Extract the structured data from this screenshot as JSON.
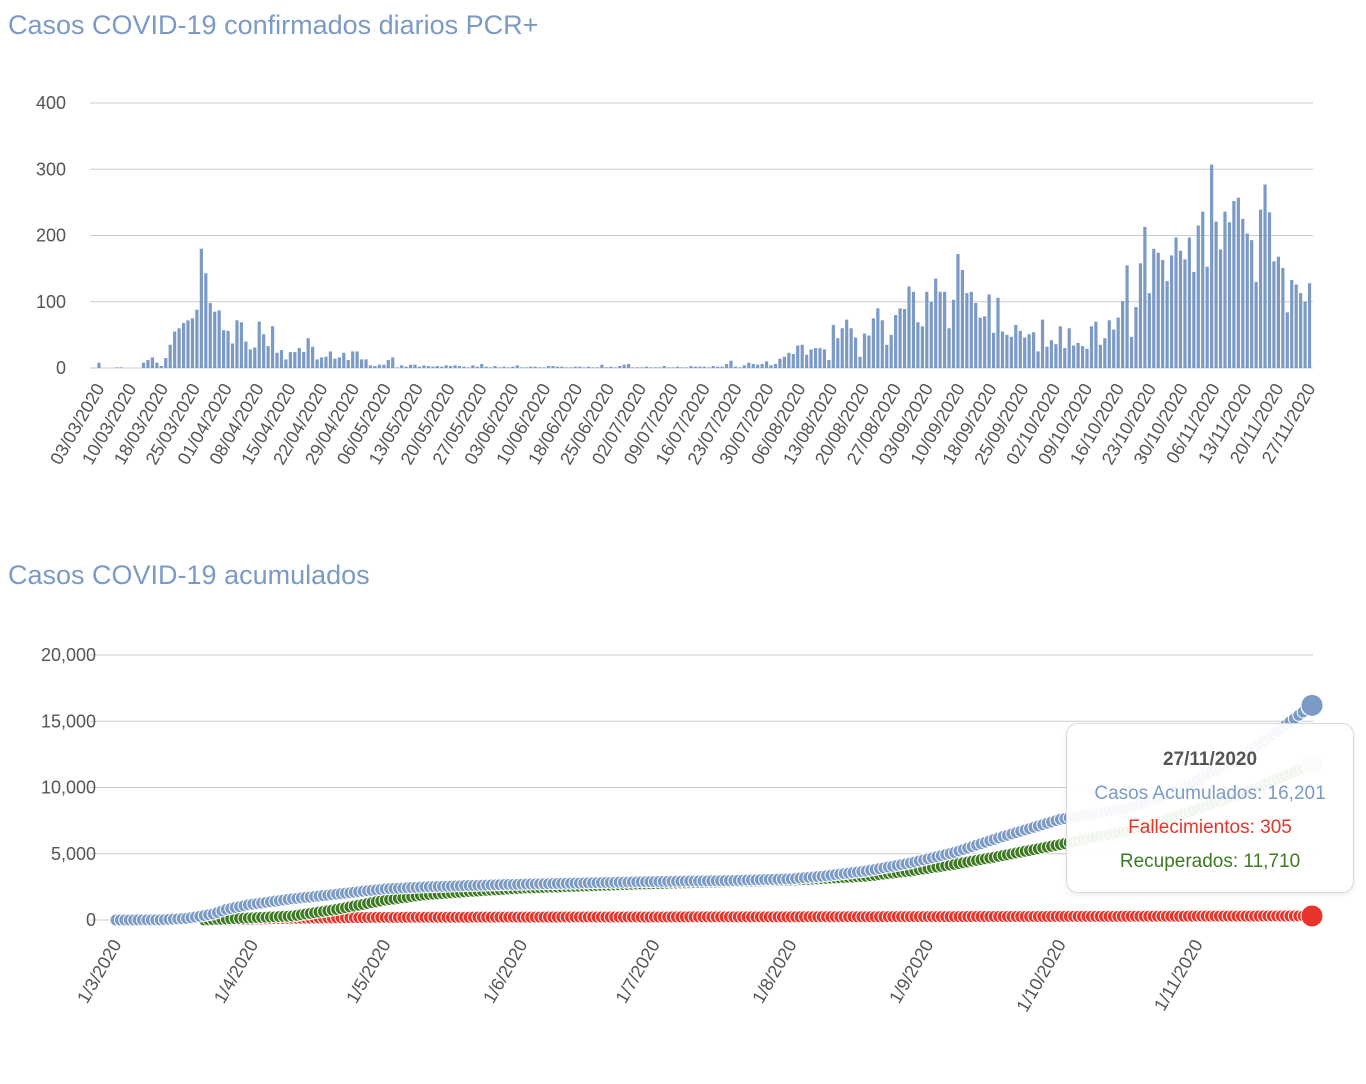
{
  "charts": [
    {
      "title": "Casos COVID-19 confirmados diarios PCR+",
      "chart_data": {
        "type": "bar",
        "yticks": [
          "0",
          "100",
          "200",
          "300",
          "400"
        ],
        "ylim": [
          0,
          400
        ],
        "grid": true,
        "x_start": "03/03/2020",
        "x_end": "27/11/2020",
        "xtick_labels": [
          "03/03/2020",
          "10/03/2020",
          "18/03/2020",
          "25/03/2020",
          "01/04/2020",
          "08/04/2020",
          "15/04/2020",
          "22/04/2020",
          "29/04/2020",
          "06/05/2020",
          "13/05/2020",
          "20/05/2020",
          "27/05/2020",
          "03/06/2020",
          "10/06/2020",
          "18/06/2020",
          "25/06/2020",
          "02/07/2020",
          "09/07/2020",
          "16/07/2020",
          "23/07/2020",
          "30/07/2020",
          "06/08/2020",
          "13/08/2020",
          "20/08/2020",
          "27/08/2020",
          "03/09/2020",
          "10/09/2020",
          "18/09/2020",
          "25/09/2020",
          "02/10/2020",
          "09/10/2020",
          "16/10/2020",
          "23/10/2020",
          "30/10/2020",
          "06/11/2020",
          "13/11/2020",
          "20/11/2020",
          "27/11/2020"
        ],
        "color": "#7b9ac6",
        "values": [
          8,
          0,
          0,
          0,
          1,
          1,
          0,
          0,
          0,
          0,
          8,
          12,
          16,
          8,
          3,
          15,
          35,
          55,
          60,
          68,
          72,
          75,
          88,
          180,
          143,
          98,
          85,
          87,
          57,
          56,
          37,
          72,
          69,
          40,
          28,
          31,
          70,
          51,
          33,
          63,
          23,
          27,
          13,
          24,
          24,
          30,
          24,
          45,
          32,
          13,
          16,
          17,
          25,
          14,
          16,
          23,
          12,
          25,
          25,
          13,
          13,
          4,
          3,
          5,
          5,
          12,
          16,
          1,
          4,
          2,
          5,
          5,
          2,
          4,
          3,
          2,
          3,
          2,
          4,
          3,
          4,
          3,
          2,
          1,
          4,
          2,
          6,
          2,
          1,
          3,
          1,
          2,
          1,
          2,
          4,
          1,
          1,
          2,
          2,
          1,
          1,
          3,
          3,
          2,
          2,
          1,
          1,
          2,
          2,
          1,
          2,
          1,
          1,
          5,
          1,
          2,
          1,
          3,
          5,
          6,
          1,
          1,
          1,
          2,
          1,
          1,
          1,
          3,
          1,
          1,
          2,
          1,
          1,
          3,
          2,
          2,
          2,
          1,
          3,
          2,
          2,
          6,
          11,
          2,
          1,
          4,
          8,
          6,
          5,
          6,
          10,
          4,
          6,
          14,
          17,
          23,
          21,
          34,
          35,
          20,
          28,
          30,
          30,
          28,
          12,
          65,
          45,
          60,
          73,
          60,
          46,
          17,
          52,
          49,
          75,
          90,
          72,
          35,
          50,
          80,
          90,
          89,
          123,
          115,
          69,
          63,
          115,
          100,
          135,
          115,
          115,
          60,
          103,
          172,
          148,
          113,
          115,
          98,
          76,
          78,
          111,
          53,
          106,
          55,
          50,
          47,
          65,
          56,
          46,
          51,
          54,
          25,
          73,
          32,
          42,
          36,
          63,
          30,
          60,
          34,
          38,
          33,
          29,
          63,
          70,
          35,
          45,
          72,
          58,
          76,
          101,
          155,
          47,
          92,
          158,
          213,
          113,
          180,
          174,
          163,
          131,
          170,
          197,
          177,
          164,
          197,
          145,
          215,
          236,
          153,
          307,
          221,
          179,
          236,
          220,
          252,
          257,
          225,
          203,
          193,
          130,
          239,
          277,
          235,
          161,
          168,
          151,
          84,
          133,
          126,
          113,
          100,
          128
        ]
      }
    },
    {
      "title": "Casos COVID-19 acumulados",
      "chart_data": {
        "type": "line",
        "yticks": [
          "0",
          "5,000",
          "10,000",
          "15,000",
          "20,000"
        ],
        "ylim": [
          0,
          20000
        ],
        "grid": true,
        "xtick_labels": [
          "1/3/2020",
          "1/4/2020",
          "1/5/2020",
          "1/6/2020",
          "1/7/2020",
          "1/8/2020",
          "1/9/2020",
          "1/10/2020",
          "1/11/2020"
        ],
        "x_start": "01/03/2020",
        "x_end": "27/11/2020",
        "series": [
          {
            "name": "Casos Acumulados",
            "color": "#7b9ac6",
            "keypoints": [
              [
                0,
                0
              ],
              [
                10,
                10
              ],
              [
                16,
                120
              ],
              [
                22,
                450
              ],
              [
                25,
                800
              ],
              [
                30,
                1150
              ],
              [
                40,
                1600
              ],
              [
                50,
                1950
              ],
              [
                61,
                2350
              ],
              [
                70,
                2500
              ],
              [
                80,
                2600
              ],
              [
                92,
                2700
              ],
              [
                110,
                2820
              ],
              [
                122,
                2900
              ],
              [
                140,
                2980
              ],
              [
                153,
                3100
              ],
              [
                160,
                3300
              ],
              [
                170,
                3700
              ],
              [
                180,
                4300
              ],
              [
                190,
                5100
              ],
              [
                200,
                6200
              ],
              [
                214,
                7600
              ],
              [
                230,
                8500
              ],
              [
                240,
                9700
              ],
              [
                255,
                12300
              ],
              [
                265,
                14700
              ],
              [
                271,
                16201
              ]
            ]
          },
          {
            "name": "Recuperados",
            "color": "#3d7a22",
            "last_color": "#cfe1c9",
            "keypoints": [
              [
                20,
                0
              ],
              [
                40,
                300
              ],
              [
                50,
                800
              ],
              [
                61,
                1500
              ],
              [
                70,
                1900
              ],
              [
                80,
                2150
              ],
              [
                92,
                2400
              ],
              [
                122,
                2750
              ],
              [
                153,
                3000
              ],
              [
                170,
                3300
              ],
              [
                180,
                3700
              ],
              [
                190,
                4200
              ],
              [
                200,
                4800
              ],
              [
                214,
                5700
              ],
              [
                230,
                6800
              ],
              [
                240,
                7800
              ],
              [
                255,
                9500
              ],
              [
                265,
                10900
              ],
              [
                271,
                11710
              ]
            ]
          },
          {
            "name": "Fallecimientos",
            "color": "#e8352b",
            "keypoints": [
              [
                25,
                0
              ],
              [
                30,
                50
              ],
              [
                35,
                100
              ],
              [
                45,
                150
              ],
              [
                61,
                200
              ],
              [
                92,
                220
              ],
              [
                153,
                240
              ],
              [
                214,
                270
              ],
              [
                271,
                305
              ]
            ]
          }
        ]
      },
      "tooltip": {
        "date": "27/11/2020",
        "casos": "Casos Acumulados: 16,201",
        "fallecimientos": "Fallecimientos: 305",
        "recuperados": "Recuperados: 11,710"
      }
    }
  ]
}
